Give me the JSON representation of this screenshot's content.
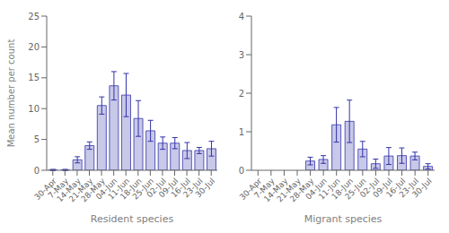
{
  "chart_data": [
    {
      "type": "bar",
      "categories": [
        "30-Apr",
        "7-May",
        "14-May",
        "21-May",
        "28-May",
        "04-Jun",
        "11-Jun",
        "18-Jun",
        "25-Jun",
        "02-Jul",
        "09-Jul",
        "16-Jul",
        "23-Jul",
        "30-Jul"
      ],
      "values": [
        0.05,
        0.05,
        1.7,
        4.0,
        10.5,
        13.7,
        12.2,
        8.4,
        6.4,
        4.4,
        4.4,
        3.2,
        3.2,
        3.5
      ],
      "errors": [
        0.1,
        0.1,
        0.5,
        0.6,
        1.4,
        2.3,
        3.5,
        2.9,
        1.7,
        1.0,
        0.9,
        1.3,
        0.5,
        1.2
      ],
      "color": "#c8c8e8",
      "ylim": [
        0,
        25
      ],
      "yticks": [
        0,
        5,
        10,
        15,
        20,
        25
      ],
      "xlabel": "Resident species",
      "ylabel": "Mean number per count",
      "grid": false
    },
    {
      "type": "bar",
      "categories": [
        "30-Apr",
        "7-May",
        "14-May",
        "21-May",
        "28-May",
        "04-Jun",
        "11-Jun",
        "18-Jun",
        "25-Jun",
        "02-Jul",
        "09-Jul",
        "16-Jul",
        "23-Jul",
        "30-Jul"
      ],
      "values": [
        0.0,
        0.0,
        0.0,
        0.0,
        0.24,
        0.28,
        1.18,
        1.27,
        0.55,
        0.17,
        0.37,
        0.38,
        0.37,
        0.1
      ],
      "errors": [
        0.0,
        0.0,
        0.0,
        0.0,
        0.1,
        0.1,
        0.45,
        0.55,
        0.2,
        0.12,
        0.22,
        0.2,
        0.1,
        0.07
      ],
      "color": "#c8c8e8",
      "ylim": [
        0,
        4
      ],
      "yticks": [
        0,
        1,
        2,
        3,
        4
      ],
      "xlabel": "Migrant species",
      "grid": false
    }
  ]
}
